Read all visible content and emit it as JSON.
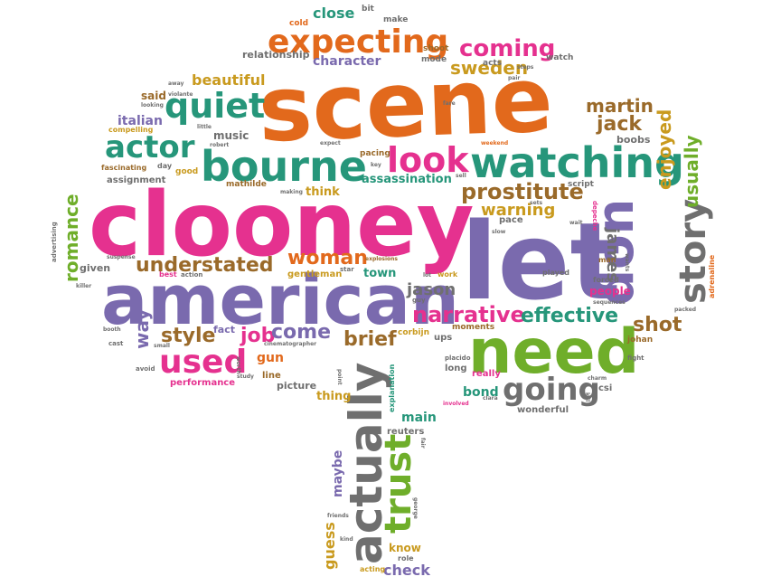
{
  "colors": {
    "orange": "#e2691c",
    "pink": "#e5318f",
    "purple": "#7a6aae",
    "green": "#6fae2a",
    "teal": "#26967a",
    "gold": "#c99a1e",
    "brown": "#9a6a2a",
    "gray": "#6f6f6f",
    "red": "#c0392b"
  },
  "words": {
    "scene": "scene",
    "clooney": "clooney",
    "let": "let",
    "american": "american",
    "need": "need",
    "don": "don",
    "bourne": "bourne",
    "watching": "watching",
    "expecting": "expecting",
    "actually": "actually",
    "trust": "trust",
    "look": "look",
    "quiet": "quiet",
    "actor": "actor",
    "story": "story",
    "used": "used",
    "going": "going",
    "coming": "coming",
    "narrative": "narrative",
    "effective": "effective",
    "prostitute": "prostitute",
    "understated": "understated",
    "woman": "woman",
    "romance": "romance",
    "martin": "martin",
    "jack": "jack",
    "enjoyed": "enjoyed",
    "usually": "usually",
    "james": "james",
    "shot": "shot",
    "style": "style",
    "job": "job",
    "come": "come",
    "brief": "brief",
    "way": "way",
    "jason": "jason",
    "warning": "warning",
    "sweden": "sweden",
    "beautiful": "beautiful",
    "close": "close",
    "character": "character",
    "relationship": "relationship",
    "italian": "italian",
    "assassination": "assassination",
    "gun": "gun",
    "check": "check",
    "maybe": "maybe",
    "guess": "guess",
    "know": "know",
    "main": "main",
    "bond": "bond",
    "thing": "thing",
    "think": "think",
    "people": "people",
    "town": "town",
    "gentleman": "gentleman",
    "pace": "pace",
    "music": "music",
    "said": "said",
    "boobs": "boobs",
    "fact": "fact",
    "picture": "picture",
    "mathilde": "mathilde",
    "assignment": "assignment",
    "given": "given",
    "performance": "performance",
    "line": "line",
    "reuters": "reuters",
    "wonderful": "wonderful",
    "csi": "csi",
    "johan": "johan",
    "corbijn": "corbijn",
    "ups": "ups",
    "moments": "moments",
    "long": "long",
    "really": "really",
    "pacing": "pacing",
    "acts": "acts",
    "watch": "watch",
    "shoot": "shoot",
    "mode": "mode",
    "cold": "cold",
    "bit": "bit",
    "make": "make",
    "fascinating": "fascinating",
    "day": "day",
    "good": "good",
    "compelling": "compelling",
    "advertising": "advertising",
    "adrenaline": "adrenaline",
    "played": "played",
    "forced": "forced",
    "man": "man",
    "best": "best",
    "action": "action",
    "star": "star",
    "work": "work",
    "explanation": "explanation",
    "cinematographer": "cinematographer",
    "role": "role",
    "acting": "acting",
    "involved": "involved",
    "placido": "placido",
    "fair": "fair",
    "script": "script",
    "wait": "wait",
    "depeche": "depeche",
    "slow": "slow",
    "sell": "sell",
    "weekend": "weekend",
    "expect": "expect",
    "explosions": "explosions",
    "suspense": "suspense",
    "killer": "killer",
    "booth": "booth",
    "cast": "cast",
    "small": "small",
    "avoid": "avoid",
    "study": "study",
    "point": "point",
    "friends": "friends",
    "kind": "kind",
    "george": "george",
    "fight": "fight",
    "charm": "charm",
    "clara": "clara",
    "kill": "kill",
    "sequences": "sequences",
    "wants": "wants",
    "packed": "packed",
    "robert": "robert",
    "little": "little",
    "looking": "looking",
    "violante": "violante",
    "away": "away",
    "fare": "fare",
    "pair": "pair",
    "steps": "steps",
    "key": "key",
    "making": "making",
    "lot": "lot",
    "guy": "guy",
    "worth": "worth",
    "sets": "sets"
  }
}
